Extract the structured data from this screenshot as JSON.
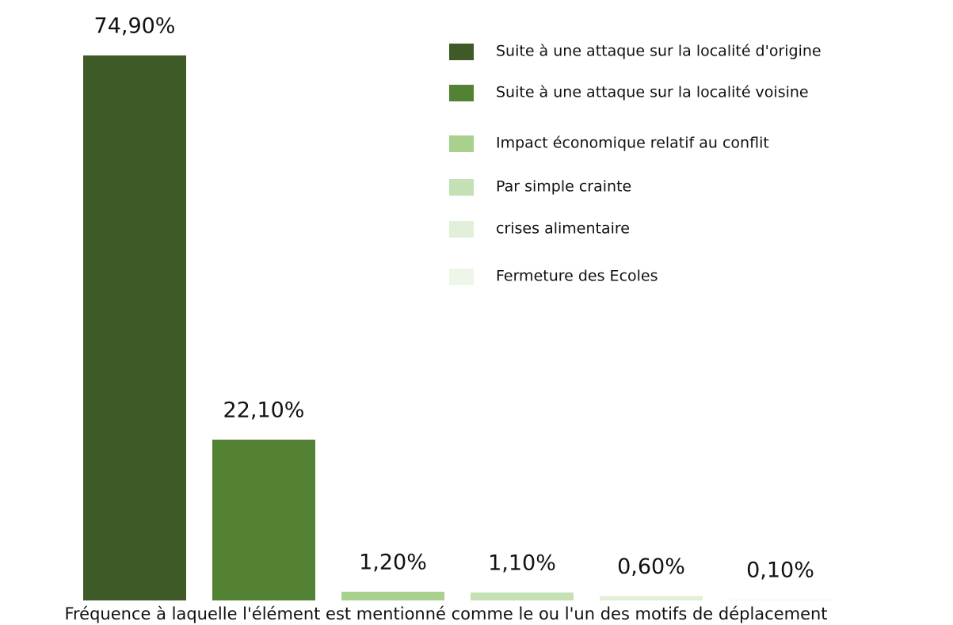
{
  "chart_data": {
    "type": "bar",
    "x_label": "Fréquence à laquelle l'élément est mentionné comme le ou l'un des motifs de déplacement",
    "categories": [
      "Suite à une attaque sur la localité d'origine",
      "Suite à une attaque sur la localité voisine",
      "Impact économique relatif au conflit",
      "Par simple crainte",
      "crises alimentaire",
      "Fermeture des Ecoles"
    ],
    "values": [
      74.9,
      22.1,
      1.2,
      1.1,
      0.6,
      0.1
    ],
    "value_labels": [
      "74,90%",
      "22,10%",
      "1,20%",
      "1,10%",
      "0,60%",
      "0,10%"
    ],
    "colors": [
      "#3d5a27",
      "#548235",
      "#a9d18e",
      "#c5e0b4",
      "#e2efd9",
      "#eef5e9"
    ],
    "legend": "top-right"
  }
}
